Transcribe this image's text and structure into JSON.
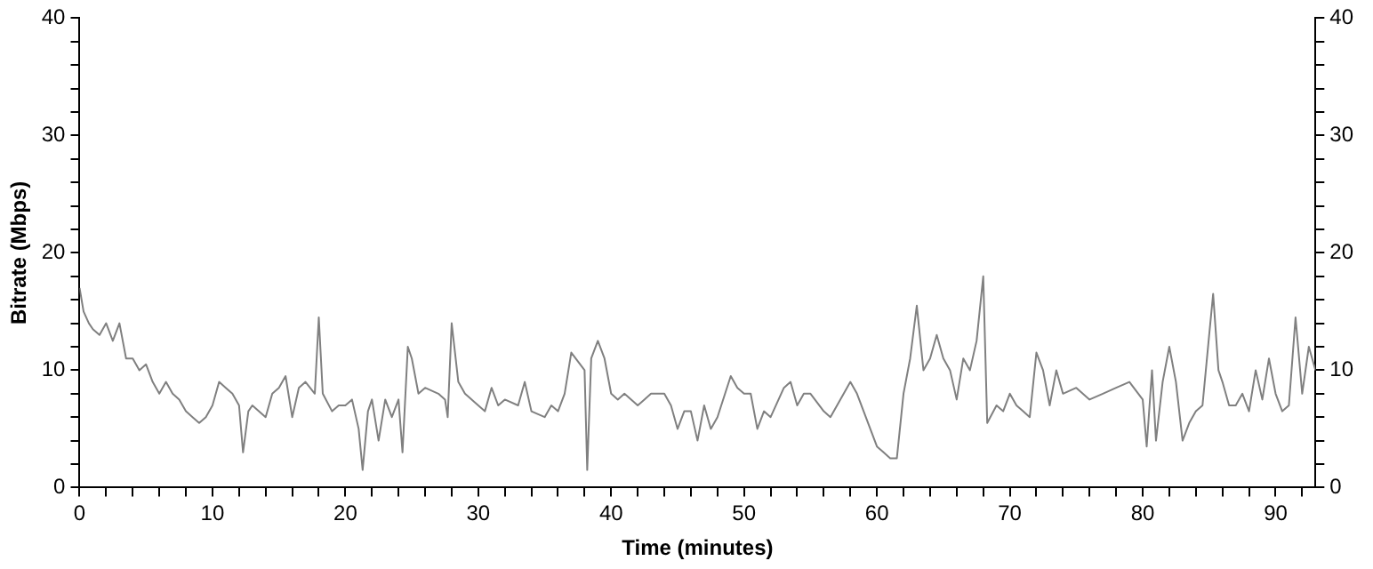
{
  "chart_data": {
    "type": "line",
    "xlabel": "Time (minutes)",
    "ylabel": "Bitrate (Mbps)",
    "xlim": [
      0,
      93
    ],
    "xticks": [
      0,
      {
        "value": 2,
        "label": null
      },
      {
        "value": 4,
        "label": null
      },
      {
        "value": 6,
        "label": null
      },
      {
        "value": 8,
        "label": null
      },
      10,
      {
        "value": 12,
        "label": null
      },
      {
        "value": 14,
        "label": null
      },
      {
        "value": 16,
        "label": null
      },
      {
        "value": 18,
        "label": null
      },
      20,
      {
        "value": 22,
        "label": null
      },
      {
        "value": 24,
        "label": null
      },
      {
        "value": 26,
        "label": null
      },
      {
        "value": 28,
        "label": null
      },
      30,
      {
        "value": 32,
        "label": null
      },
      {
        "value": 34,
        "label": null
      },
      {
        "value": 36,
        "label": null
      },
      {
        "value": 38,
        "label": null
      },
      40,
      {
        "value": 42,
        "label": null
      },
      {
        "value": 44,
        "label": null
      },
      {
        "value": 46,
        "label": null
      },
      {
        "value": 48,
        "label": null
      },
      50,
      {
        "value": 52,
        "label": null
      },
      {
        "value": 54,
        "label": null
      },
      {
        "value": 56,
        "label": null
      },
      {
        "value": 58,
        "label": null
      },
      60,
      {
        "value": 62,
        "label": null
      },
      {
        "value": 64,
        "label": null
      },
      {
        "value": 66,
        "label": null
      },
      {
        "value": 68,
        "label": null
      },
      70,
      {
        "value": 72,
        "label": null
      },
      {
        "value": 74,
        "label": null
      },
      {
        "value": 76,
        "label": null
      },
      {
        "value": 78,
        "label": null
      },
      80,
      {
        "value": 82,
        "label": null
      },
      {
        "value": 84,
        "label": null
      },
      {
        "value": 86,
        "label": null
      },
      {
        "value": 88,
        "label": null
      },
      90,
      {
        "value": 92,
        "label": null
      }
    ],
    "ylim": [
      0,
      40
    ],
    "yticks": [
      0,
      {
        "value": 2,
        "label": null
      },
      {
        "value": 4,
        "label": null
      },
      {
        "value": 6,
        "label": null
      },
      {
        "value": 8,
        "label": null
      },
      10,
      {
        "value": 12,
        "label": null
      },
      {
        "value": 14,
        "label": null
      },
      {
        "value": 16,
        "label": null
      },
      {
        "value": 18,
        "label": null
      },
      20,
      {
        "value": 22,
        "label": null
      },
      {
        "value": 24,
        "label": null
      },
      {
        "value": 26,
        "label": null
      },
      {
        "value": 28,
        "label": null
      },
      30,
      {
        "value": 32,
        "label": null
      },
      {
        "value": 34,
        "label": null
      },
      {
        "value": 36,
        "label": null
      },
      {
        "value": 38,
        "label": null
      },
      40
    ],
    "y2lim": [
      0,
      40
    ],
    "y2ticks": [
      0,
      {
        "value": 2,
        "label": null
      },
      {
        "value": 4,
        "label": null
      },
      {
        "value": 6,
        "label": null
      },
      {
        "value": 8,
        "label": null
      },
      10,
      {
        "value": 12,
        "label": null
      },
      {
        "value": 14,
        "label": null
      },
      {
        "value": 16,
        "label": null
      },
      {
        "value": 18,
        "label": null
      },
      20,
      {
        "value": 22,
        "label": null
      },
      {
        "value": 24,
        "label": null
      },
      {
        "value": 26,
        "label": null
      },
      {
        "value": 28,
        "label": null
      },
      30,
      {
        "value": 32,
        "label": null
      },
      {
        "value": 34,
        "label": null
      },
      {
        "value": 36,
        "label": null
      },
      {
        "value": 38,
        "label": null
      },
      40
    ],
    "grid": false,
    "legend": false,
    "marker": "none",
    "line_style": "solid",
    "series": [
      {
        "color": "#808080",
        "x": [
          0,
          0.3,
          0.7,
          1,
          1.5,
          2,
          2.5,
          3,
          3.5,
          4,
          4.5,
          5,
          5.5,
          6,
          6.5,
          7,
          7.5,
          8,
          8.5,
          9,
          9.5,
          10,
          10.5,
          11,
          11.5,
          12,
          12.3,
          12.7,
          13,
          14,
          14.5,
          15,
          15.5,
          16,
          16.5,
          17,
          17.7,
          18,
          18.3,
          19,
          19.5,
          20,
          20.5,
          21,
          21.3,
          21.7,
          22,
          22.5,
          23,
          23.5,
          24,
          24.3,
          24.7,
          25,
          25.5,
          26,
          27,
          27.5,
          27.7,
          28,
          28.5,
          29,
          30,
          30.5,
          31,
          31.5,
          32,
          33,
          33.5,
          34,
          35,
          35.5,
          36,
          36.5,
          37,
          38,
          38.2,
          38.5,
          39,
          39.5,
          40,
          40.5,
          41,
          42,
          42.5,
          43,
          44,
          44.5,
          45,
          45.5,
          46,
          46.5,
          47,
          47.5,
          48,
          49,
          49.5,
          50,
          50.5,
          51,
          51.5,
          52,
          53,
          53.5,
          54,
          54.5,
          55,
          56,
          56.5,
          57,
          58,
          58.5,
          59,
          60,
          60.5,
          61,
          61.5,
          62,
          62.5,
          63,
          63.5,
          64,
          64.5,
          65,
          65.5,
          66,
          66.5,
          67,
          67.5,
          68,
          68.3,
          69,
          69.5,
          70,
          70.5,
          71,
          71.5,
          72,
          72.5,
          73,
          73.5,
          74,
          75,
          76,
          77,
          78,
          79,
          80,
          80.3,
          80.7,
          81,
          81.5,
          82,
          82.5,
          83,
          83.5,
          84,
          84.5,
          85,
          85.3,
          85.7,
          86,
          86.5,
          87,
          87.5,
          88,
          88.5,
          89,
          89.5,
          90,
          90.5,
          91,
          91.5,
          92,
          92.5,
          93
        ],
        "values": [
          17,
          15,
          14,
          13.5,
          13,
          14,
          12.5,
          14,
          11,
          11,
          10,
          10.5,
          9,
          8,
          9,
          8,
          7.5,
          6.5,
          6,
          5.5,
          6,
          7,
          9,
          8.5,
          8,
          7,
          3,
          6.5,
          7,
          6,
          8,
          8.5,
          9.5,
          6,
          8.5,
          9,
          8,
          14.5,
          8,
          6.5,
          7,
          7,
          7.5,
          5,
          1.5,
          6.5,
          7.5,
          4,
          7.5,
          6,
          7.5,
          3,
          12,
          11,
          8,
          8.5,
          8,
          7.5,
          6,
          14,
          9,
          8,
          7,
          6.5,
          8.5,
          7,
          7.5,
          7,
          9,
          6.5,
          6,
          7,
          6.5,
          8,
          11.5,
          10,
          1.5,
          11,
          12.5,
          11,
          8,
          7.5,
          8,
          7,
          7.5,
          8,
          8,
          7,
          5,
          6.5,
          6.5,
          4,
          7,
          5,
          6,
          9.5,
          8.5,
          8,
          8,
          5,
          6.5,
          6,
          8.5,
          9,
          7,
          8,
          8,
          6.5,
          6,
          7,
          9,
          8,
          6.5,
          3.5,
          3,
          2.5,
          2.5,
          8,
          11,
          15.5,
          10,
          11,
          13,
          11,
          10,
          7.5,
          11,
          10,
          12.5,
          18,
          5.5,
          7,
          6.5,
          8,
          7,
          6.5,
          6,
          11.5,
          10,
          7,
          10,
          8,
          8.5,
          7.5,
          8,
          8.5,
          9,
          7.5,
          3.5,
          10,
          4,
          9,
          12,
          9,
          4,
          5.5,
          6.5,
          7,
          13,
          16.5,
          10,
          9,
          7,
          7,
          8,
          6.5,
          10,
          7.5,
          11,
          8,
          6.5,
          7,
          14.5,
          8,
          12,
          10
        ]
      }
    ]
  }
}
